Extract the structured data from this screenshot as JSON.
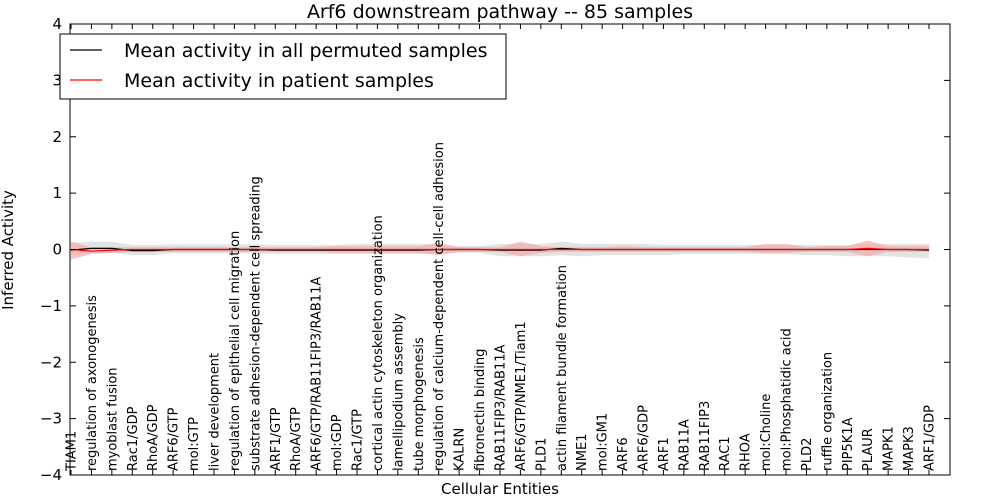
{
  "chart_data": {
    "type": "line",
    "title": "Arf6 downstream pathway -- 85 samples",
    "xlabel": "Cellular Entities",
    "ylabel": "Inferred Activity",
    "ylim": [
      -4,
      4
    ],
    "yticks": [
      -4,
      -3,
      -2,
      -1,
      0,
      1,
      2,
      3,
      4
    ],
    "ytick_labels": [
      "−4",
      "−3",
      "−2",
      "−1",
      "0",
      "1",
      "2",
      "3",
      "4"
    ],
    "grid": false,
    "legend_position": "top-left",
    "categories": [
      "TIAM1",
      "regulation of axonogenesis",
      "myoblast fusion",
      "Rac1/GDP",
      "RhoA/GDP",
      "ARF6/GTP",
      "mol:GTP",
      "liver development",
      "regulation of epithelial cell migration",
      "substrate adhesion-dependent cell spreading",
      "ARF1/GTP",
      "RhoA/GTP",
      "ARF6/GTP/RAB11FIP3/RAB11A",
      "mol:GDP",
      "Rac1/GTP",
      "cortical actin cytoskeleton organization",
      "lamellipodium assembly",
      "tube morphogenesis",
      "regulation of calcium-dependent cell-cell adhesion",
      "KALRN",
      "fibronectin binding",
      "RAB11FIP3/RAB11A",
      "ARF6/GTP/NME1/Tiam1",
      "PLD1",
      "actin filament bundle formation",
      "NME1",
      "mol:GM1",
      "ARF6",
      "ARF6/GDP",
      "ARF1",
      "RAB11A",
      "RAB11FIP3",
      "RAC1",
      "RHOA",
      "mol:Choline",
      "mol:Phosphatidic acid",
      "PLD2",
      "ruffle organization",
      "PIP5K1A",
      "PLAUR",
      "MAPK1",
      "MAPK3",
      "ARF1/GDP"
    ],
    "series": [
      {
        "name": "Mean activity in all permuted samples",
        "color": "#000000",
        "band_color": "#d9d9d9",
        "values": [
          -0.01,
          0.02,
          0.02,
          -0.02,
          -0.02,
          0.0,
          0.0,
          0.0,
          0.0,
          0.0,
          -0.01,
          -0.01,
          -0.01,
          -0.01,
          -0.01,
          -0.01,
          -0.01,
          -0.01,
          0.0,
          0.0,
          0.0,
          -0.01,
          -0.01,
          -0.01,
          0.02,
          0.0,
          0.0,
          0.0,
          0.0,
          0.0,
          0.0,
          0.0,
          0.0,
          0.0,
          0.0,
          0.0,
          0.0,
          0.0,
          0.0,
          0.0,
          0.0,
          0.0,
          -0.01
        ],
        "lower": [
          -0.1,
          -0.06,
          -0.06,
          -0.1,
          -0.1,
          -0.07,
          -0.07,
          -0.07,
          -0.07,
          -0.07,
          -0.08,
          -0.08,
          -0.08,
          -0.08,
          -0.08,
          -0.08,
          -0.08,
          -0.08,
          -0.07,
          -0.06,
          -0.06,
          -0.12,
          -0.12,
          -0.12,
          -0.1,
          -0.12,
          -0.1,
          -0.1,
          -0.1,
          -0.1,
          -0.08,
          -0.08,
          -0.08,
          -0.08,
          -0.08,
          -0.08,
          -0.1,
          -0.1,
          -0.12,
          -0.12,
          -0.12,
          -0.14,
          -0.16
        ],
        "upper": [
          0.12,
          0.14,
          0.14,
          0.08,
          0.08,
          0.09,
          0.09,
          0.09,
          0.09,
          0.09,
          0.08,
          0.08,
          0.08,
          0.08,
          0.1,
          0.1,
          0.1,
          0.1,
          0.08,
          0.06,
          0.06,
          0.1,
          0.1,
          0.1,
          0.14,
          0.1,
          0.1,
          0.1,
          0.1,
          0.08,
          0.08,
          0.08,
          0.08,
          0.08,
          0.08,
          0.08,
          0.08,
          0.08,
          0.08,
          0.1,
          0.1,
          0.1,
          0.1
        ]
      },
      {
        "name": "Mean activity in patient samples",
        "color": "#ff0000",
        "band_color": "#f4a0a0",
        "values": [
          0.0,
          -0.03,
          -0.01,
          0.0,
          0.0,
          0.0,
          0.0,
          0.0,
          0.0,
          0.0,
          0.0,
          0.0,
          0.0,
          0.0,
          0.0,
          0.0,
          0.0,
          0.0,
          0.0,
          0.0,
          0.0,
          0.0,
          0.0,
          0.0,
          0.0,
          0.0,
          0.0,
          0.0,
          0.0,
          0.0,
          0.0,
          0.0,
          0.0,
          0.0,
          0.0,
          0.0,
          0.0,
          0.0,
          0.0,
          0.02,
          0.0,
          0.0,
          0.0
        ],
        "lower": [
          -0.18,
          -0.08,
          -0.06,
          -0.04,
          -0.04,
          -0.04,
          -0.04,
          -0.04,
          -0.04,
          -0.04,
          -0.04,
          -0.04,
          -0.04,
          -0.06,
          -0.06,
          -0.06,
          -0.06,
          -0.06,
          -0.1,
          -0.04,
          -0.04,
          -0.04,
          -0.12,
          -0.06,
          -0.04,
          -0.04,
          -0.04,
          -0.04,
          -0.04,
          -0.04,
          -0.04,
          -0.04,
          -0.04,
          -0.04,
          -0.06,
          -0.06,
          -0.04,
          -0.04,
          -0.04,
          -0.12,
          -0.04,
          -0.04,
          -0.04
        ],
        "upper": [
          0.14,
          0.04,
          0.04,
          0.04,
          0.04,
          0.04,
          0.04,
          0.04,
          0.04,
          0.04,
          0.04,
          0.04,
          0.04,
          0.06,
          0.06,
          0.06,
          0.06,
          0.06,
          0.12,
          0.04,
          0.04,
          0.04,
          0.14,
          0.06,
          0.04,
          0.04,
          0.04,
          0.06,
          0.04,
          0.04,
          0.04,
          0.04,
          0.04,
          0.04,
          0.1,
          0.1,
          0.04,
          0.06,
          0.06,
          0.16,
          0.06,
          0.06,
          0.06
        ]
      }
    ]
  }
}
